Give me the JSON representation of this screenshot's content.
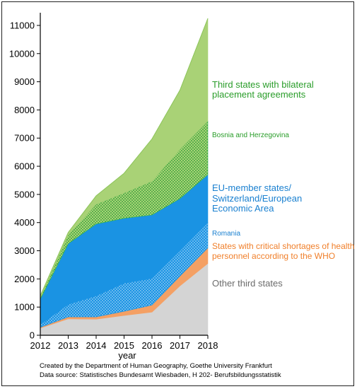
{
  "chart_data": {
    "type": "area",
    "stacked": true,
    "x": [
      2012,
      2013,
      2014,
      2015,
      2016,
      2017,
      2018
    ],
    "xlabel": "year",
    "ylabel": "",
    "ylim": [
      0,
      11300
    ],
    "yticks": [
      0,
      1000,
      2000,
      3000,
      4000,
      5000,
      6000,
      7000,
      8000,
      9000,
      10000,
      11000
    ],
    "grid": false,
    "series": [
      {
        "name": "Other third states",
        "color": "#d4d4d4",
        "pattern": "solid",
        "values": [
          250,
          580,
          570,
          700,
          820,
          1750,
          2550
        ]
      },
      {
        "name": "States with critical shortages of health personnel according to the WHO",
        "color": "#f4a064",
        "pattern": "solid",
        "values": [
          30,
          70,
          80,
          150,
          250,
          350,
          550
        ]
      },
      {
        "name": "Romania",
        "color": "#1a93e3",
        "pattern": "dotted",
        "values": [
          100,
          450,
          750,
          1000,
          950,
          900,
          900
        ]
      },
      {
        "name": "EU-member states/ Switzerland/European Economic Area",
        "color": "#1a93e3",
        "pattern": "solid",
        "values": [
          900,
          2150,
          2550,
          2300,
          2250,
          1850,
          1700
        ]
      },
      {
        "name": "Bosnia and Herzegovina",
        "color": "#2db34a",
        "pattern": "dotted",
        "values": [
          50,
          300,
          700,
          900,
          1200,
          1750,
          1900
        ]
      },
      {
        "name": "Third states with bilateral placement agreements",
        "color": "#a9d276",
        "pattern": "solid",
        "values": [
          70,
          100,
          300,
          700,
          1500,
          2100,
          3650
        ]
      }
    ],
    "legend_placement": "right"
  },
  "legend": {
    "third_states_line1": "Third states with bilateral",
    "third_states_line2": "placement agreements",
    "bosnia": "Bosnia and Herzegovina",
    "eu_line1": "EU-member states/",
    "eu_line2": "Switzerland/European",
    "eu_line3": "Economic Area",
    "romania": "Romania",
    "who_line1": "States with critical shortages of health",
    "who_line2": "personnel according to the WHO",
    "other": "Other third states"
  },
  "colors": {
    "third_states_text": "#2a9d2a",
    "bosnia_text": "#2a9d2a",
    "eu_text": "#1a80d0",
    "romania_text": "#1a80d0",
    "who_text": "#f07f2a",
    "other_text": "#6b6b6b"
  },
  "credits": {
    "line1": "Created by the Department of Human Geography, Goethe University Frankfurt",
    "line2": "Data source: Statistisches Bundesamt Wiesbaden, H 202- Berufsbildungsstatistik"
  }
}
